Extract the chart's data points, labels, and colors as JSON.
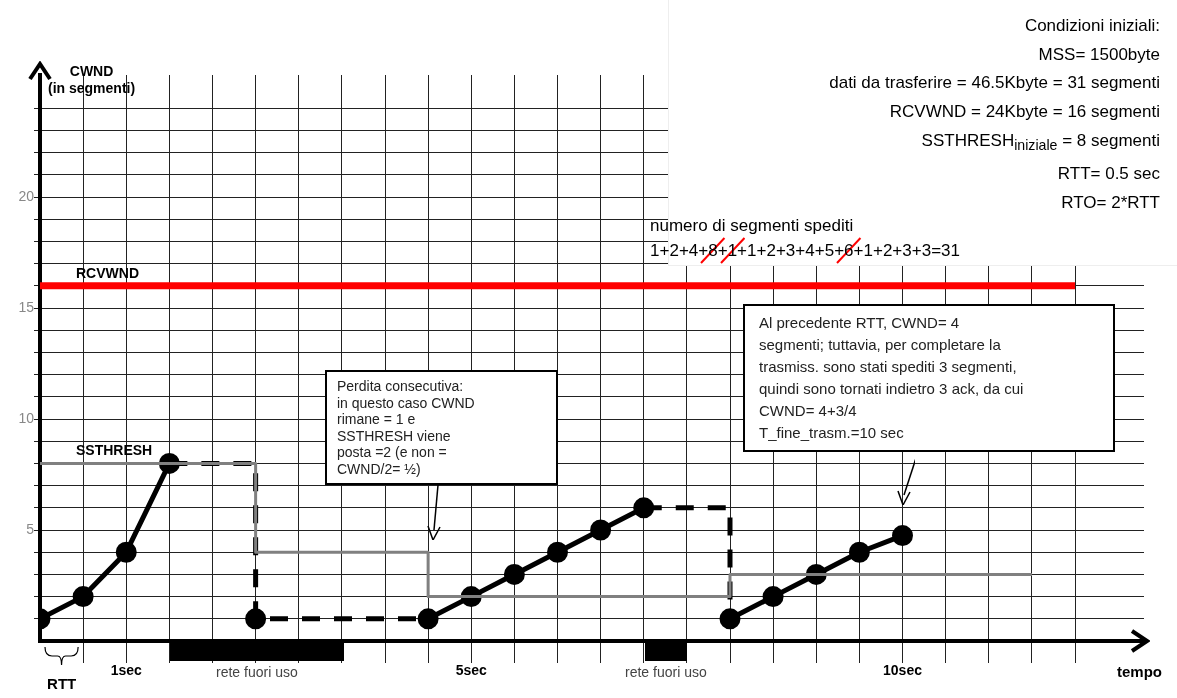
{
  "chart_data": {
    "type": "line",
    "xlabel": "tempo",
    "ylabel": "CWND\n(in segmenti)",
    "xlim": [
      0,
      12.8
    ],
    "ylim": [
      0,
      25.5
    ],
    "xticks": [
      {
        "value": 0.5,
        "label": null
      },
      {
        "value": 1,
        "label": "1sec"
      },
      {
        "value": 1.5,
        "label": null
      },
      {
        "value": 2,
        "label": null
      },
      {
        "value": 2.5,
        "label": null
      },
      {
        "value": 3,
        "label": null
      },
      {
        "value": 3.5,
        "label": null
      },
      {
        "value": 4,
        "label": null
      },
      {
        "value": 4.5,
        "label": null
      },
      {
        "value": 5,
        "label": "5sec"
      },
      {
        "value": 5.5,
        "label": null
      },
      {
        "value": 6,
        "label": null
      },
      {
        "value": 6.5,
        "label": null
      },
      {
        "value": 7,
        "label": null
      },
      {
        "value": 7.5,
        "label": null
      },
      {
        "value": 8,
        "label": null
      },
      {
        "value": 8.5,
        "label": null
      },
      {
        "value": 9,
        "label": null
      },
      {
        "value": 9.5,
        "label": null
      },
      {
        "value": 10,
        "label": "10sec"
      },
      {
        "value": 10.5,
        "label": null
      },
      {
        "value": 11,
        "label": null
      },
      {
        "value": 11.5,
        "label": null
      },
      {
        "value": 12,
        "label": null
      }
    ],
    "yticks": [
      {
        "value": 1,
        "label": null
      },
      {
        "value": 2,
        "label": null
      },
      {
        "value": 3,
        "label": null
      },
      {
        "value": 4,
        "label": null
      },
      5,
      {
        "value": 6,
        "label": null
      },
      {
        "value": 7,
        "label": null
      },
      {
        "value": 8,
        "label": null
      },
      {
        "value": 9,
        "label": null
      },
      10,
      {
        "value": 11,
        "label": null
      },
      {
        "value": 12,
        "label": null
      },
      {
        "value": 13,
        "label": null
      },
      {
        "value": 14,
        "label": null
      },
      15,
      {
        "value": 16,
        "label": null
      },
      {
        "value": 17,
        "label": null
      },
      {
        "value": 18,
        "label": null
      },
      {
        "value": 19,
        "label": null
      },
      20,
      {
        "value": 21,
        "label": null
      },
      {
        "value": 22,
        "label": null
      },
      {
        "value": 23,
        "label": null
      },
      {
        "value": 24,
        "label": null
      }
    ],
    "grid": true,
    "series": [
      {
        "name": "RCVWND",
        "color": "#ff0000",
        "x": [
          0,
          12
        ],
        "values": [
          16,
          16
        ],
        "marker": "none",
        "line_style": "solid"
      },
      {
        "name": "SSTHRESH",
        "color": "#808080",
        "x": [
          0,
          2.5,
          2.5,
          4.5,
          4.5,
          8,
          8,
          11.5
        ],
        "values": [
          8,
          8,
          4,
          4,
          2,
          2,
          3,
          3
        ],
        "marker": "none",
        "line_style": "solid"
      },
      {
        "color": "#000000",
        "x": [
          1.5,
          2.5,
          2.5,
          4.5
        ],
        "values": [
          8,
          8,
          1,
          1
        ],
        "line_style": "dashed"
      },
      {
        "color": "#000000",
        "x": [
          7,
          8,
          8
        ],
        "values": [
          6,
          6,
          1
        ],
        "line_style": "dashed"
      },
      {
        "color": "#000000",
        "x": [
          0,
          0.5,
          1,
          1.5
        ],
        "values": [
          1,
          2,
          4,
          8
        ],
        "marker": "circle",
        "line_style": "solid"
      },
      {
        "type": "scatter",
        "color": "#000000",
        "x": [
          2.5
        ],
        "values": [
          1
        ],
        "marker": "circle"
      },
      {
        "color": "#000000",
        "x": [
          4.5,
          5,
          5.5,
          6,
          6.5,
          7
        ],
        "values": [
          1,
          2,
          3,
          4,
          5,
          6
        ],
        "marker": "circle",
        "line_style": "solid"
      },
      {
        "color": "#000000",
        "x": [
          8,
          8.5,
          9,
          9.5,
          10
        ],
        "values": [
          1,
          2,
          3,
          4,
          4.75
        ],
        "marker": "circle",
        "line_style": "solid"
      }
    ],
    "annotations": [
      "rete fuori uso",
      "rete fuori uso",
      "RTT",
      "Perdita consecutiva:\nin questo caso CWND\nrimane = 1 e\nSSTHRESH viene\nposta =2 (e non =\nCWND/2= ½)",
      "Al precedente RTT, CWND= 4\nsegmenti; tuttavia, per completare la\ntrasmiss. sono stati spediti 3 segmenti,\nquindi sono tornati indietro 3 ack, da cui\nCWND= 4+3/4\nT_fine_trasm.=10 sec",
      "Condizioni iniziali:\nMSS= 1500byte\ndati da trasferire = 46.5Kbyte = 31 segmenti\nRCVWND = 24Kbyte = 16 segmenti\nSSTHRESH$_{iniziale}$ = 8 segmenti\nRTT= 0.5 sec\nRTO= 2*RTT",
      "numero di segmenti spediti\n1+2+4+8+1+1+2+3+4+5+6+1+2+3+3=31"
    ]
  }
}
